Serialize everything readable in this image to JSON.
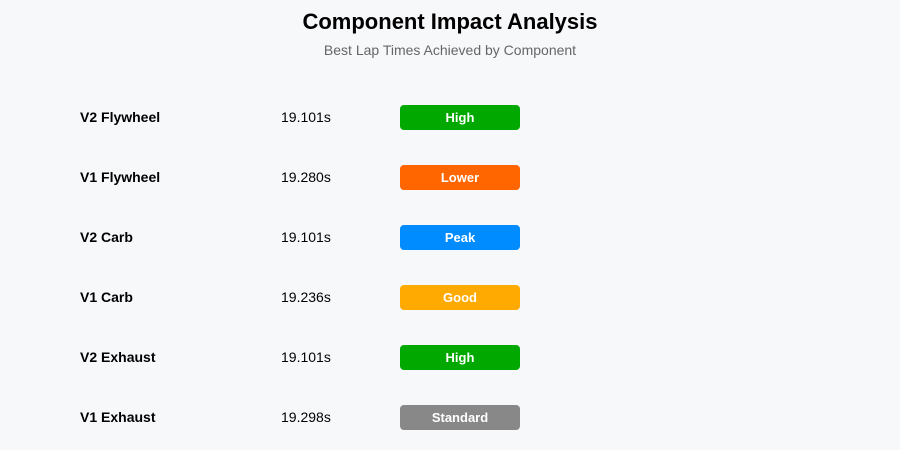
{
  "header": {
    "title": "Component Impact Analysis",
    "subtitle": "Best Lap Times Achieved by Component"
  },
  "rows": [
    {
      "component": "V2 Flywheel",
      "time": "19.101s",
      "badge": "High",
      "badge_color": "#00a800"
    },
    {
      "component": "V1 Flywheel",
      "time": "19.280s",
      "badge": "Lower",
      "badge_color": "#ff6600"
    },
    {
      "component": "V2 Carb",
      "time": "19.101s",
      "badge": "Peak",
      "badge_color": "#008cff"
    },
    {
      "component": "V1 Carb",
      "time": "19.236s",
      "badge": "Good",
      "badge_color": "#ffaa00"
    },
    {
      "component": "V2 Exhaust",
      "time": "19.101s",
      "badge": "High",
      "badge_color": "#00a800"
    },
    {
      "component": "V1 Exhaust",
      "time": "19.298s",
      "badge": "Standard",
      "badge_color": "#888888"
    }
  ]
}
